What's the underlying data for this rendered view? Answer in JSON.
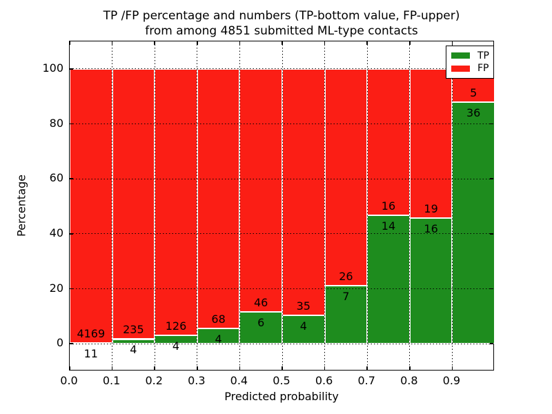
{
  "title": {
    "line1": "TP /FP percentage and numbers (TP-bottom value, FP-upper)",
    "line2": "from among 4851 submitted ML-type contacts"
  },
  "chart_data": {
    "type": "bar",
    "mode": "stacked-percentage",
    "bins": [
      "0.0-0.1",
      "0.1-0.2",
      "0.2-0.3",
      "0.3-0.4",
      "0.4-0.5",
      "0.5-0.6",
      "0.6-0.7",
      "0.7-0.8",
      "0.8-0.9",
      "0.9-1.0"
    ],
    "bin_start": [
      0.0,
      0.1,
      0.2,
      0.3,
      0.4,
      0.5,
      0.6,
      0.7,
      0.8,
      0.9
    ],
    "bin_width": 0.1,
    "series": [
      {
        "name": "TP",
        "color": "#1e8c1e",
        "values": [
          11,
          4,
          4,
          4,
          6,
          4,
          7,
          14,
          16,
          36
        ]
      },
      {
        "name": "FP",
        "color": "#fb1e15",
        "values": [
          4169,
          235,
          126,
          68,
          46,
          35,
          26,
          16,
          19,
          5
        ]
      }
    ],
    "total_contacts": 4851,
    "bar_edge_color": "#ffffff",
    "xlabel": "Predicted probability",
    "ylabel": "Percentage",
    "xlim": [
      0.0,
      1.0
    ],
    "ylim": [
      -10,
      110
    ],
    "xticks": [
      0.0,
      0.1,
      0.2,
      0.3,
      0.4,
      0.5,
      0.6,
      0.7,
      0.8,
      0.9
    ],
    "xtick_labels": [
      "0.0",
      "0.1",
      "0.2",
      "0.3",
      "0.4",
      "0.5",
      "0.6",
      "0.7",
      "0.8",
      "0.9"
    ],
    "yticks": [
      0,
      20,
      40,
      60,
      80,
      100
    ],
    "ytick_labels": [
      "0",
      "20",
      "40",
      "60",
      "80",
      "100"
    ],
    "grid": true,
    "grid_style": "dotted",
    "grid_color": "#000000",
    "legend": {
      "position": "upper right",
      "entries": [
        "TP",
        "FP"
      ]
    }
  }
}
